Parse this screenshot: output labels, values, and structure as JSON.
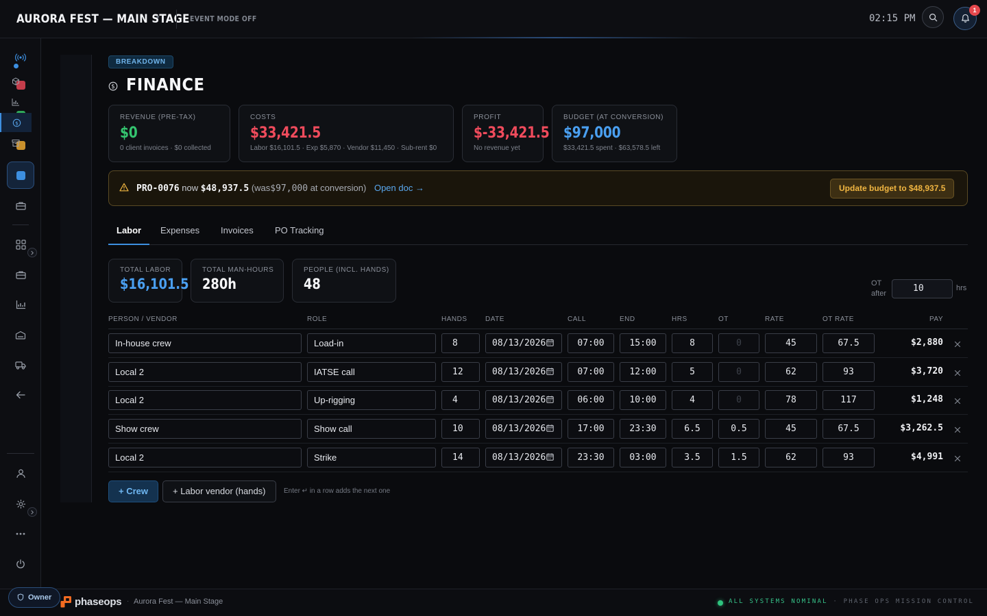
{
  "header": {
    "title": "AURORA FEST — MAIN STAGE",
    "event_mode": "EVENT MODE OFF",
    "clock": "02:15 PM",
    "notification_count": "1"
  },
  "page": {
    "breadcrumb": "BREAKDOWN",
    "title": "FINANCE"
  },
  "stats": [
    {
      "label": "REVENUE (PRE-TAX)",
      "value": "$0",
      "sub": "0 client invoices · $0 collected",
      "color": "#34c46f"
    },
    {
      "label": "COSTS",
      "value": "$33,421.5",
      "sub": "Labor $16,101.5 · Exp $5,870 · Vendor $11,450 · Sub-rent $0",
      "color": "#ef4b5c"
    },
    {
      "label": "PROFIT",
      "value": "$-33,421.5",
      "sub": "No revenue yet",
      "color": "#ef4b5c"
    },
    {
      "label": "BUDGET (AT CONVERSION)",
      "value": "$97,000",
      "sub": "$33,421.5 spent · $63,578.5 left",
      "color": "#4a9ff0"
    }
  ],
  "alert": {
    "po": "PRO-0076",
    "now_word": "now",
    "now_amount": "$48,937.5",
    "was_prefix": "(was",
    "was_amount": "$97,000",
    "was_suffix": "at conversion)",
    "link": "Open doc →",
    "button": "Update budget to $48,937.5"
  },
  "tabs": [
    "Labor",
    "Expenses",
    "Invoices",
    "PO Tracking"
  ],
  "summary": [
    {
      "label": "TOTAL LABOR",
      "value": "$16,101.5",
      "color": "#4a9ff0"
    },
    {
      "label": "TOTAL MAN-HOURS",
      "value": "280h",
      "color": "#f5f6f8"
    },
    {
      "label": "PEOPLE (INCL. HANDS)",
      "value": "48",
      "color": "#f5f6f8"
    }
  ],
  "ot": {
    "label_top": "OT",
    "label_bottom": "after",
    "value": "10",
    "unit": "hrs"
  },
  "columns": [
    "PERSON / VENDOR",
    "ROLE",
    "HANDS",
    "DATE",
    "CALL",
    "END",
    "HRS",
    "OT",
    "RATE",
    "OT RATE",
    "PAY"
  ],
  "rows": [
    {
      "person": "In-house crew",
      "role": "Load-in",
      "hands": "8",
      "date": "08/13/2026",
      "call": "07:00",
      "end": "15:00",
      "hrs": "8",
      "ot": "0",
      "rate": "45",
      "ot_rate": "67.5",
      "pay": "$2,880"
    },
    {
      "person": "Local 2",
      "role": "IATSE call",
      "hands": "12",
      "date": "08/13/2026",
      "call": "07:00",
      "end": "12:00",
      "hrs": "5",
      "ot": "0",
      "rate": "62",
      "ot_rate": "93",
      "pay": "$3,720"
    },
    {
      "person": "Local 2",
      "role": "Up-rigging",
      "hands": "4",
      "date": "08/13/2026",
      "call": "06:00",
      "end": "10:00",
      "hrs": "4",
      "ot": "0",
      "rate": "78",
      "ot_rate": "117",
      "pay": "$1,248"
    },
    {
      "person": "Show crew",
      "role": "Show call",
      "hands": "10",
      "date": "08/13/2026",
      "call": "17:00",
      "end": "23:30",
      "hrs": "6.5",
      "ot": "0.5",
      "rate": "45",
      "ot_rate": "67.5",
      "pay": "$3,262.5"
    },
    {
      "person": "Local 2",
      "role": "Strike",
      "hands": "14",
      "date": "08/13/2026",
      "call": "23:30",
      "end": "03:00",
      "hrs": "3.5",
      "ot": "1.5",
      "rate": "62",
      "ot_rate": "93",
      "pay": "$4,991"
    }
  ],
  "actions": {
    "add_crew": "+ Crew",
    "add_vendor": "+ Labor vendor (hands)",
    "hint": "Enter ↵ in a row adds the next one"
  },
  "footer": {
    "role": "Owner",
    "brand": "phaseops",
    "project": "Aurora Fest — Main Stage",
    "status": "ALL SYSTEMS NOMINAL",
    "separator": "·",
    "mission": "PHASE OPS MISSION CONTROL"
  },
  "rail_colors": [
    "#c43d4b",
    "#2fa85a",
    "#c9902c",
    "#3d8fe0"
  ]
}
